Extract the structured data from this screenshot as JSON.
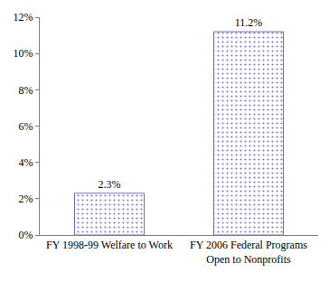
{
  "chart_data": {
    "type": "bar",
    "categories": [
      "FY 1998-99 Welfare to Work",
      "FY 2006 Federal Programs Open to Nonprofits"
    ],
    "values": [
      2.3,
      11.2
    ],
    "value_labels": [
      "2.3%",
      "11.2%"
    ],
    "data_labels": true,
    "color": "#9999ee",
    "ylim": [
      0,
      12
    ],
    "yticks": [
      {
        "value": 0,
        "label": "0%"
      },
      {
        "value": 2,
        "label": "2%"
      },
      {
        "value": 4,
        "label": "4%"
      },
      {
        "value": 6,
        "label": "6%"
      },
      {
        "value": 8,
        "label": "8%"
      },
      {
        "value": 10,
        "label": "10%"
      },
      {
        "value": 12,
        "label": "12%"
      }
    ],
    "grid": false
  }
}
